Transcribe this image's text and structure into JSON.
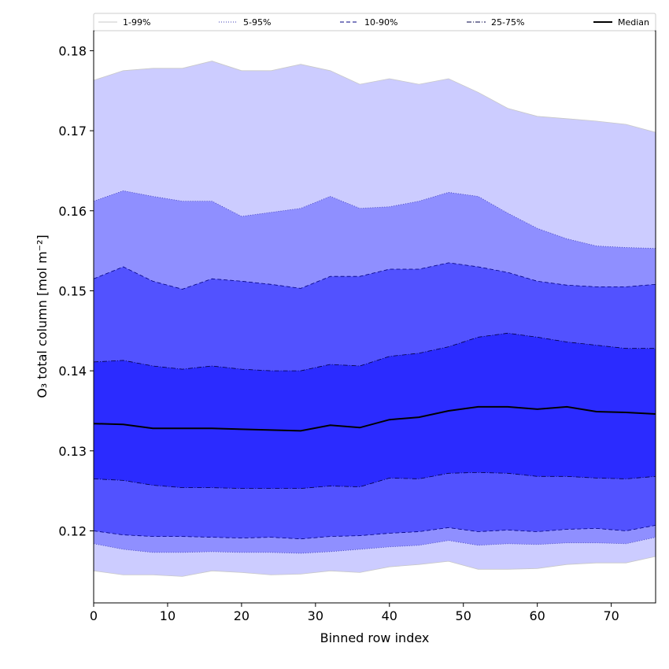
{
  "chart_data": {
    "type": "area",
    "title": "",
    "xlabel": "Binned row index",
    "ylabel": "O₃ total column [mol m⁻²]",
    "xlim": [
      0,
      76
    ],
    "ylim": [
      0.111,
      0.1825
    ],
    "xticks": [
      0,
      10,
      20,
      30,
      40,
      50,
      60,
      70
    ],
    "yticks": [
      0.12,
      0.13,
      0.14,
      0.15,
      0.16,
      0.17,
      0.18
    ],
    "ytick_labels": [
      "0.12",
      "0.13",
      "0.14",
      "0.15",
      "0.16",
      "0.17",
      "0.18"
    ],
    "grid": false,
    "legend_position": "top, outside above axes",
    "x": [
      0,
      4,
      8,
      12,
      16,
      20,
      24,
      28,
      32,
      36,
      40,
      44,
      48,
      52,
      56,
      60,
      64,
      68,
      72,
      76
    ],
    "bands": [
      {
        "name": "1-99%",
        "color": "#ccccff",
        "line_color": "#c8c8c8",
        "line_style": "solid",
        "lower": [
          0.115,
          0.1145,
          0.1145,
          0.1143,
          0.115,
          0.1148,
          0.1145,
          0.1146,
          0.115,
          0.1148,
          0.1155,
          0.1158,
          0.1162,
          0.1152,
          0.1152,
          0.1153,
          0.1158,
          0.116,
          0.116,
          0.1168
        ],
        "upper": [
          0.1763,
          0.1775,
          0.1778,
          0.1778,
          0.1787,
          0.1775,
          0.1775,
          0.1783,
          0.1775,
          0.1758,
          0.1765,
          0.1758,
          0.1765,
          0.1748,
          0.1728,
          0.1718,
          0.1715,
          0.1712,
          0.1708,
          0.1698
        ]
      },
      {
        "name": "5-95%",
        "color": "#8f8fff",
        "line_color": "#3c3cb4",
        "line_style": "dotted",
        "lower": [
          0.1184,
          0.1177,
          0.1173,
          0.1173,
          0.1174,
          0.1173,
          0.1173,
          0.1172,
          0.1174,
          0.1177,
          0.118,
          0.1182,
          0.1188,
          0.1182,
          0.1184,
          0.1183,
          0.1185,
          0.1185,
          0.1184,
          0.1192
        ],
        "upper": [
          0.1612,
          0.1625,
          0.1618,
          0.1612,
          0.1612,
          0.1593,
          0.1598,
          0.1603,
          0.1618,
          0.1603,
          0.1605,
          0.1612,
          0.1623,
          0.1618,
          0.1597,
          0.1578,
          0.1565,
          0.1556,
          0.1554,
          0.1553
        ]
      },
      {
        "name": "10-90%",
        "color": "#5252ff",
        "line_color": "#000080",
        "line_style": "dashed",
        "lower": [
          0.12,
          0.1195,
          0.1193,
          0.1193,
          0.1192,
          0.1191,
          0.1192,
          0.119,
          0.1193,
          0.1194,
          0.1197,
          0.1199,
          0.1204,
          0.1199,
          0.1201,
          0.1199,
          0.1202,
          0.1203,
          0.12,
          0.1207
        ],
        "upper": [
          0.1515,
          0.153,
          0.1512,
          0.1502,
          0.1515,
          0.1512,
          0.1508,
          0.1503,
          0.1518,
          0.1518,
          0.1527,
          0.1527,
          0.1535,
          0.153,
          0.1523,
          0.1512,
          0.1507,
          0.1505,
          0.1505,
          0.1508
        ]
      },
      {
        "name": "25-75%",
        "color": "#2b2bff",
        "line_color": "#000044",
        "line_style": "dashdot",
        "lower": [
          0.1265,
          0.1263,
          0.1257,
          0.1254,
          0.1254,
          0.1253,
          0.1253,
          0.1253,
          0.1256,
          0.1255,
          0.1266,
          0.1265,
          0.1272,
          0.1273,
          0.1272,
          0.1268,
          0.1268,
          0.1266,
          0.1265,
          0.1268
        ],
        "upper": [
          0.1411,
          0.1413,
          0.1406,
          0.1402,
          0.1406,
          0.1402,
          0.14,
          0.14,
          0.1408,
          0.1406,
          0.1418,
          0.1422,
          0.143,
          0.1442,
          0.1447,
          0.1442,
          0.1436,
          0.1432,
          0.1428,
          0.1428
        ]
      }
    ],
    "series": [
      {
        "name": "Median",
        "color": "#000000",
        "values": [
          0.1334,
          0.1333,
          0.1328,
          0.1328,
          0.1328,
          0.1327,
          0.1326,
          0.1325,
          0.1332,
          0.1329,
          0.1339,
          0.1342,
          0.135,
          0.1355,
          0.1355,
          0.1352,
          0.1355,
          0.1349,
          0.1348,
          0.1346
        ]
      }
    ],
    "legend": [
      "1-99%",
      "5-95%",
      "10-90%",
      "25-75%",
      "Median"
    ]
  }
}
